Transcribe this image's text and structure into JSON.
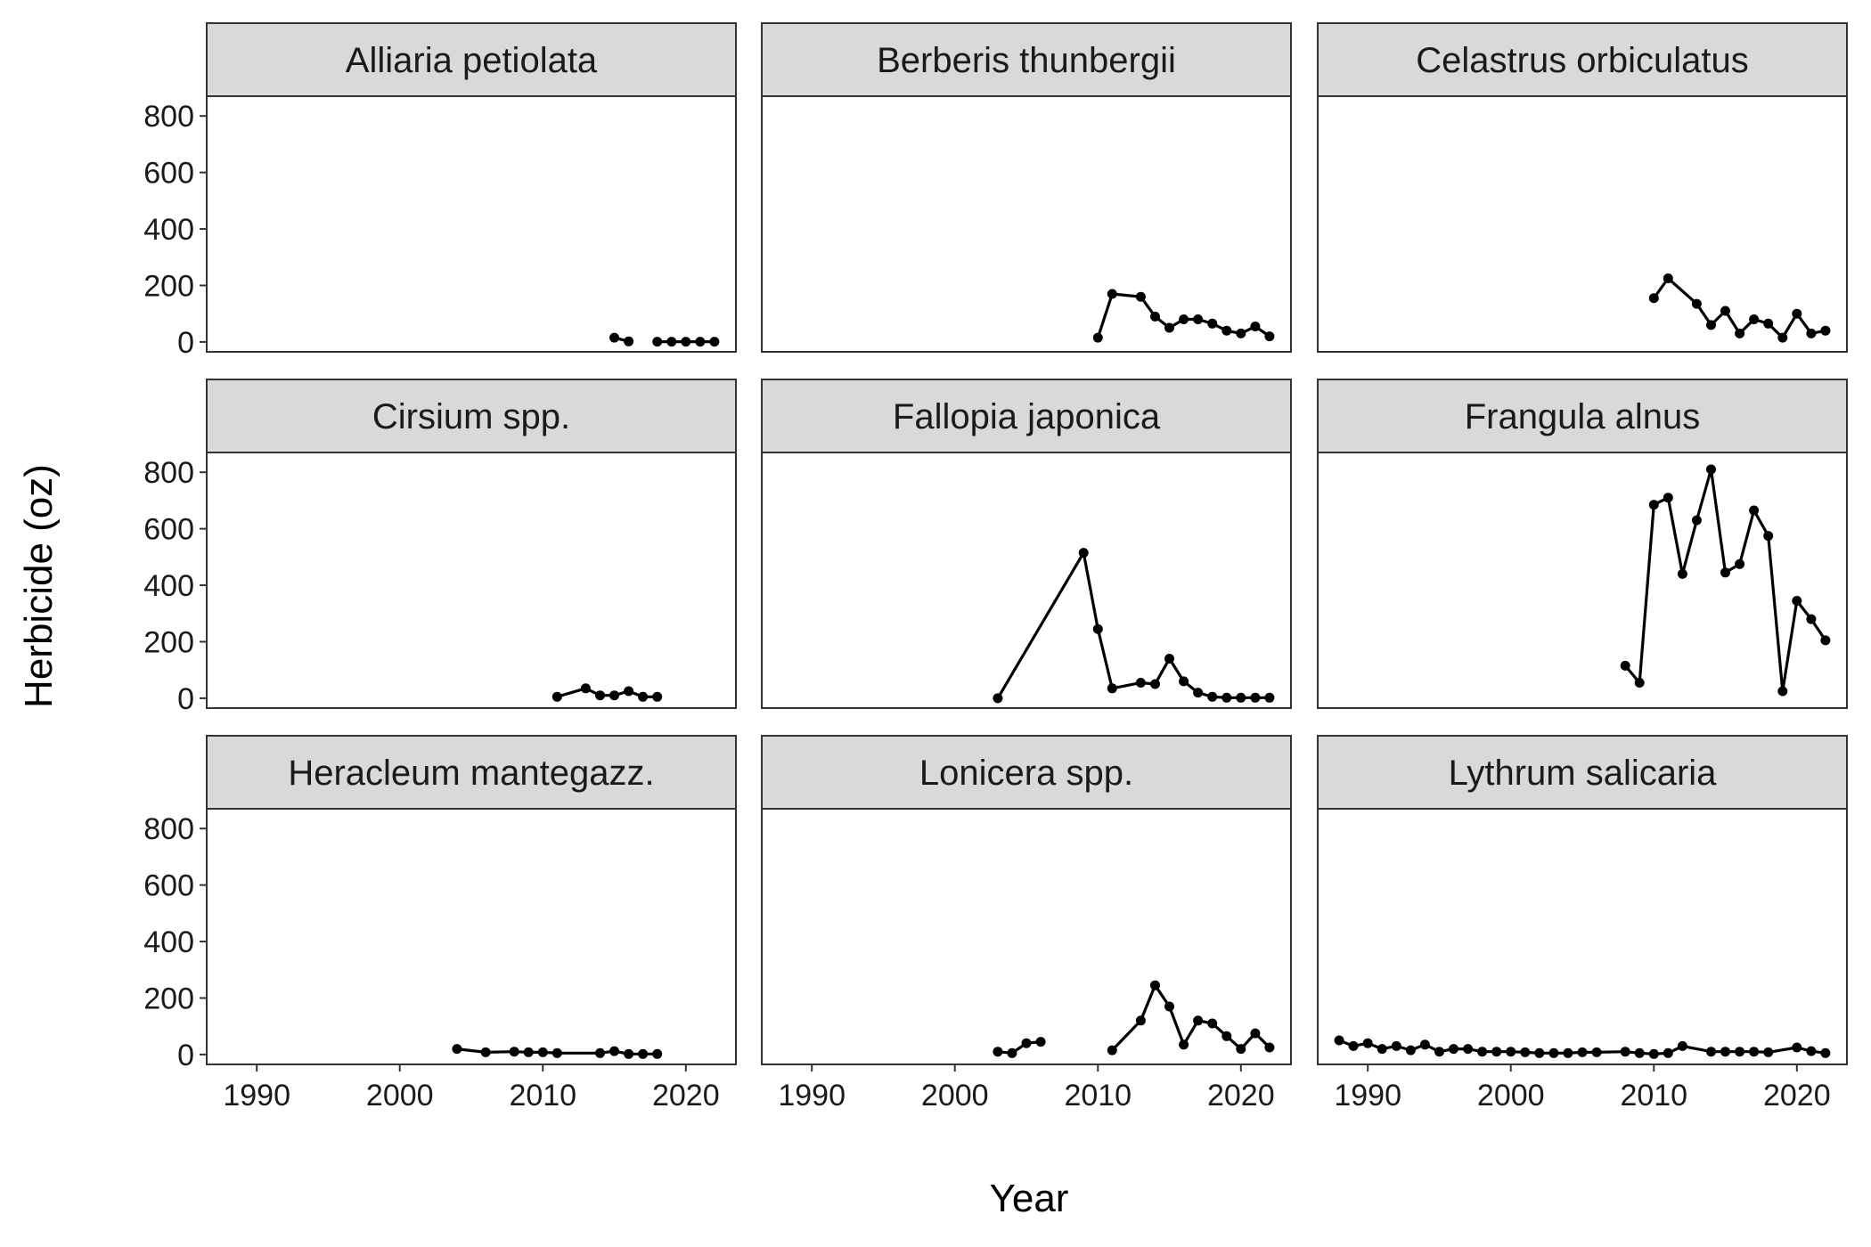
{
  "chart_data": {
    "type": "line",
    "layout": "facet-grid-3x3",
    "xlabel": "Year",
    "ylabel": "Herbicide (oz)",
    "xlim": [
      1986.5,
      2023.5
    ],
    "ylim": [
      -35,
      870
    ],
    "x_ticks": [
      1990,
      2000,
      2010,
      2020
    ],
    "x_tick_labels": [
      "1990",
      "2000",
      "2010",
      "2020"
    ],
    "y_ticks": [
      0,
      200,
      400,
      600,
      800
    ],
    "y_tick_labels": [
      "0",
      "200",
      "400",
      "600",
      "800"
    ],
    "grid": false,
    "line_color": "#000000",
    "strip_color": "#d9d9d9",
    "frame_color": "#333333",
    "panels": [
      {
        "name": "Alliaria petiolata",
        "segments": [
          [
            [
              2015,
              15
            ],
            [
              2016,
              2
            ]
          ],
          [
            [
              2018,
              1
            ],
            [
              2019,
              1
            ],
            [
              2020,
              1
            ],
            [
              2021,
              1
            ],
            [
              2022,
              1
            ]
          ]
        ]
      },
      {
        "name": "Berberis thunbergii",
        "segments": [
          [
            [
              2010,
              15
            ],
            [
              2011,
              170
            ],
            [
              2013,
              160
            ],
            [
              2014,
              90
            ],
            [
              2015,
              50
            ],
            [
              2016,
              80
            ],
            [
              2017,
              80
            ],
            [
              2018,
              65
            ],
            [
              2019,
              40
            ],
            [
              2020,
              30
            ],
            [
              2021,
              55
            ],
            [
              2022,
              20
            ]
          ]
        ]
      },
      {
        "name": "Celastrus orbiculatus",
        "segments": [
          [
            [
              2010,
              155
            ],
            [
              2011,
              225
            ],
            [
              2013,
              135
            ],
            [
              2014,
              60
            ],
            [
              2015,
              110
            ],
            [
              2016,
              30
            ],
            [
              2017,
              80
            ],
            [
              2018,
              65
            ],
            [
              2019,
              15
            ],
            [
              2020,
              100
            ],
            [
              2021,
              30
            ],
            [
              2022,
              40
            ]
          ]
        ]
      },
      {
        "name": "Cirsium spp.",
        "segments": [
          [
            [
              2011,
              5
            ],
            [
              2013,
              35
            ],
            [
              2014,
              10
            ],
            [
              2015,
              10
            ],
            [
              2016,
              25
            ],
            [
              2017,
              5
            ],
            [
              2018,
              5
            ]
          ]
        ]
      },
      {
        "name": "Fallopia japonica",
        "segments": [
          [
            [
              2003,
              0
            ],
            [
              2009,
              515
            ],
            [
              2010,
              245
            ],
            [
              2011,
              35
            ],
            [
              2013,
              55
            ],
            [
              2014,
              50
            ],
            [
              2015,
              140
            ],
            [
              2016,
              60
            ],
            [
              2017,
              20
            ],
            [
              2018,
              5
            ],
            [
              2019,
              2
            ],
            [
              2020,
              2
            ],
            [
              2021,
              2
            ],
            [
              2022,
              2
            ]
          ]
        ]
      },
      {
        "name": "Frangula alnus",
        "segments": [
          [
            [
              2008,
              115
            ],
            [
              2009,
              55
            ],
            [
              2010,
              685
            ],
            [
              2011,
              710
            ],
            [
              2012,
              440
            ],
            [
              2013,
              630
            ],
            [
              2014,
              810
            ],
            [
              2015,
              445
            ],
            [
              2016,
              475
            ],
            [
              2017,
              665
            ],
            [
              2018,
              575
            ],
            [
              2019,
              25
            ],
            [
              2020,
              345
            ],
            [
              2021,
              280
            ],
            [
              2022,
              205
            ]
          ]
        ]
      },
      {
        "name": "Heracleum mantegazz.",
        "segments": [
          [
            [
              2004,
              20
            ],
            [
              2006,
              8
            ],
            [
              2008,
              10
            ],
            [
              2009,
              8
            ],
            [
              2010,
              8
            ],
            [
              2011,
              5
            ],
            [
              2014,
              5
            ],
            [
              2015,
              12
            ],
            [
              2016,
              2
            ],
            [
              2017,
              2
            ],
            [
              2018,
              2
            ]
          ]
        ]
      },
      {
        "name": "Lonicera spp.",
        "segments": [
          [
            [
              2003,
              10
            ],
            [
              2004,
              5
            ],
            [
              2005,
              40
            ],
            [
              2006,
              45
            ]
          ],
          [
            [
              2011,
              15
            ],
            [
              2013,
              120
            ],
            [
              2014,
              245
            ],
            [
              2015,
              170
            ],
            [
              2016,
              35
            ],
            [
              2017,
              120
            ],
            [
              2018,
              110
            ],
            [
              2019,
              65
            ],
            [
              2020,
              20
            ],
            [
              2021,
              75
            ],
            [
              2022,
              25
            ]
          ]
        ]
      },
      {
        "name": "Lythrum salicaria",
        "segments": [
          [
            [
              1988,
              50
            ],
            [
              1989,
              30
            ],
            [
              1990,
              40
            ],
            [
              1991,
              20
            ],
            [
              1992,
              30
            ],
            [
              1993,
              15
            ],
            [
              1994,
              35
            ],
            [
              1995,
              10
            ],
            [
              1996,
              20
            ],
            [
              1997,
              20
            ],
            [
              1998,
              10
            ],
            [
              1999,
              10
            ],
            [
              2000,
              10
            ],
            [
              2001,
              8
            ],
            [
              2002,
              5
            ],
            [
              2003,
              5
            ],
            [
              2004,
              5
            ],
            [
              2005,
              8
            ],
            [
              2006,
              8
            ],
            [
              2008,
              10
            ],
            [
              2009,
              5
            ],
            [
              2010,
              2
            ],
            [
              2011,
              5
            ],
            [
              2012,
              30
            ],
            [
              2014,
              10
            ],
            [
              2015,
              10
            ],
            [
              2016,
              10
            ],
            [
              2017,
              10
            ],
            [
              2018,
              8
            ],
            [
              2020,
              25
            ],
            [
              2021,
              12
            ],
            [
              2022,
              5
            ]
          ]
        ]
      }
    ]
  }
}
